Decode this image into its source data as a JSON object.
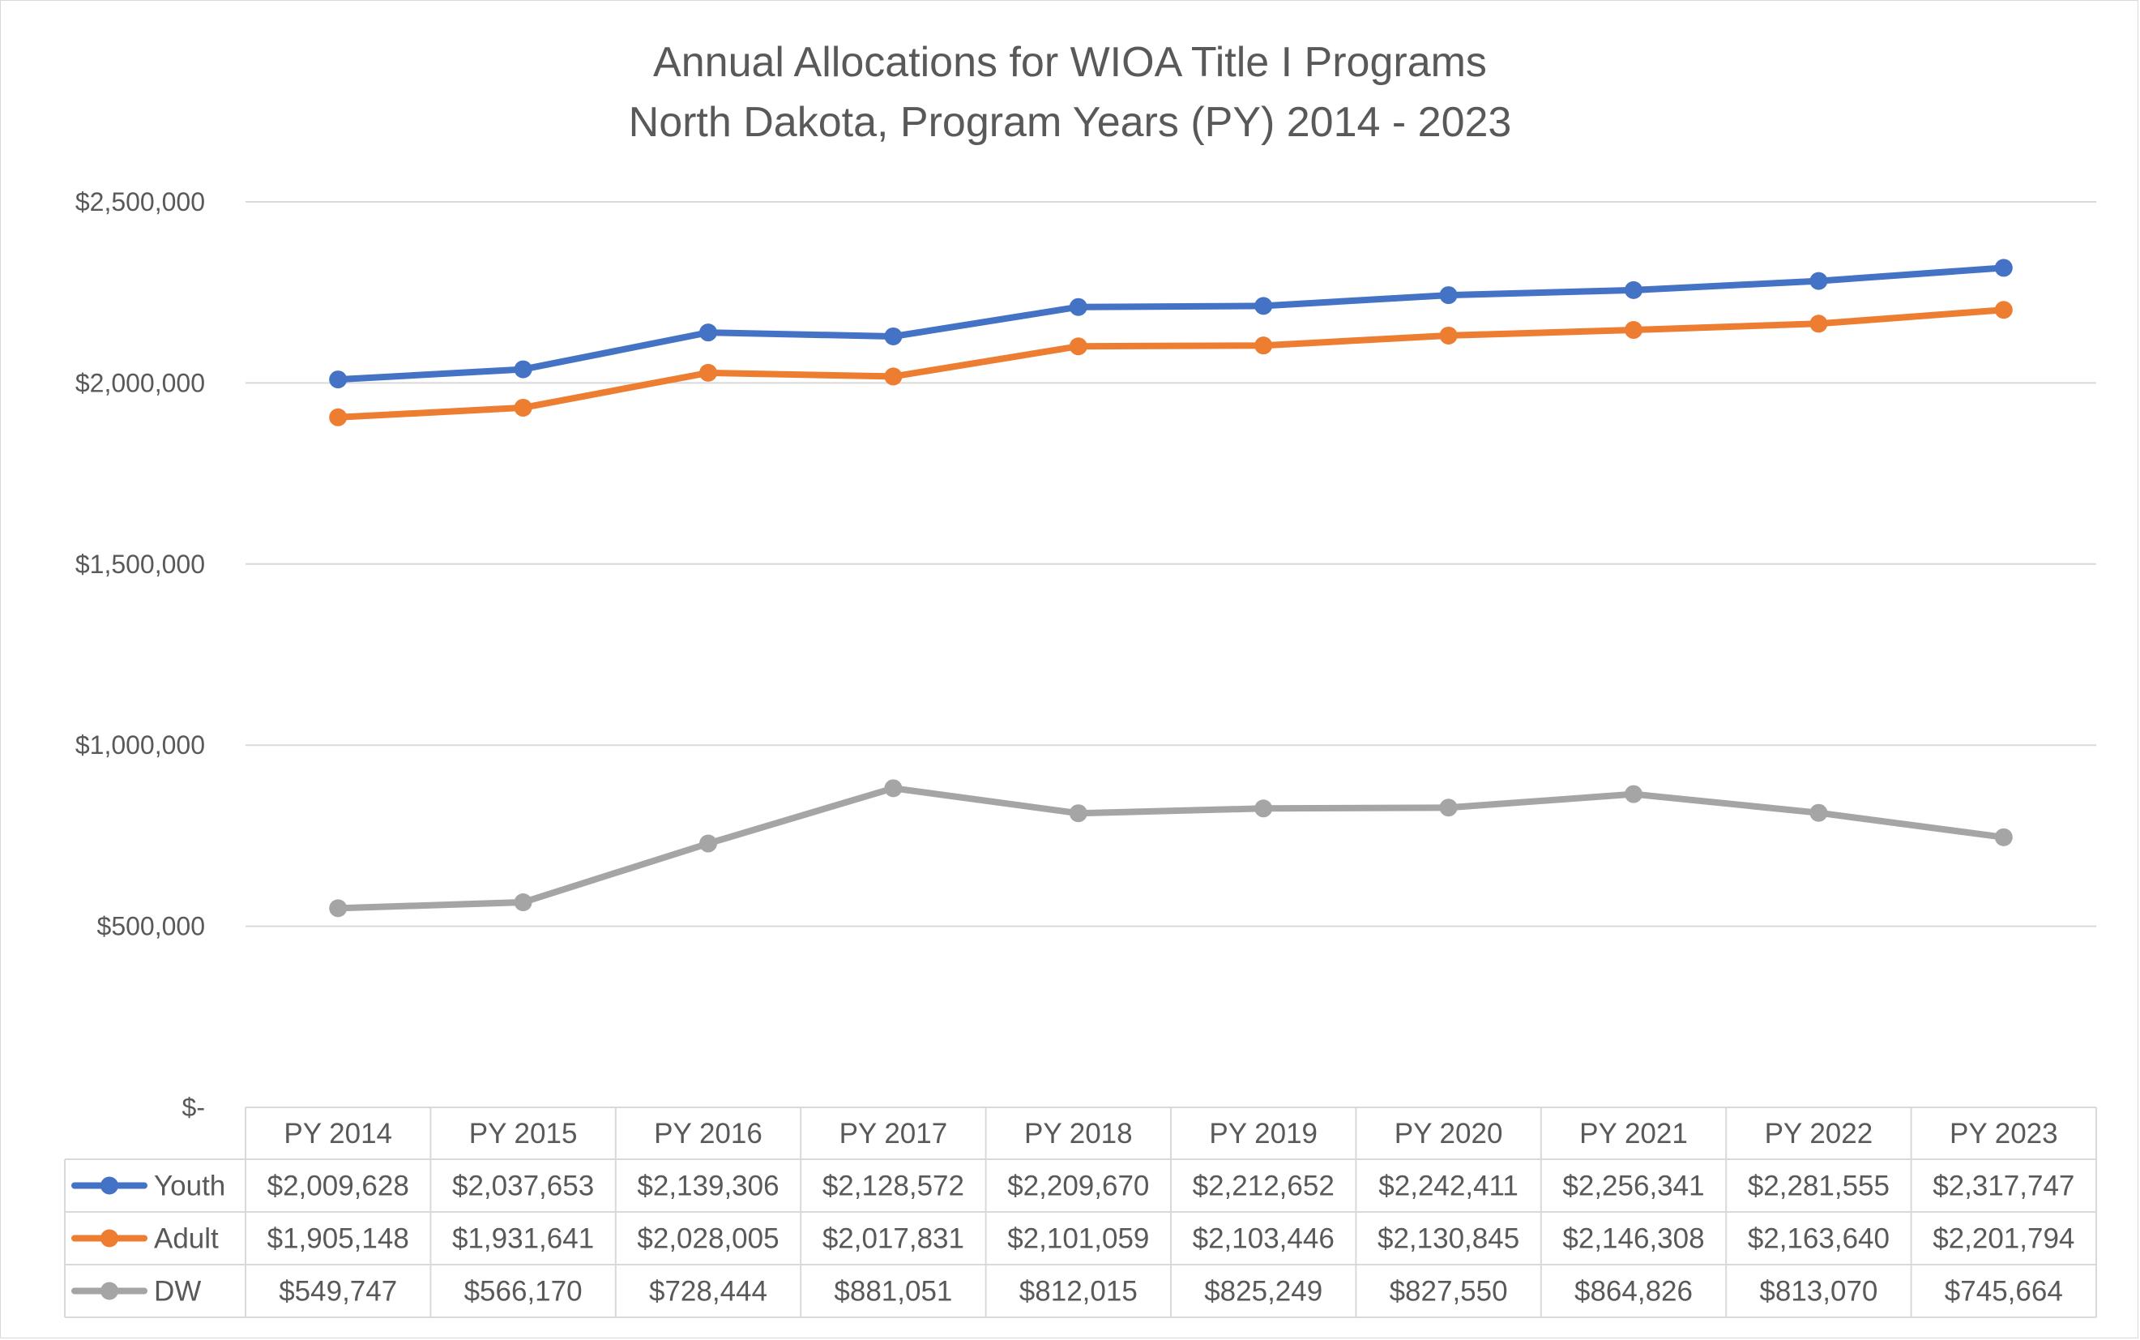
{
  "chart_data": {
    "type": "line",
    "title": "Annual Allocations for WIOA Title I Programs",
    "subtitle": "North Dakota, Program Years (PY) 2014 - 2023",
    "categories": [
      "PY 2014",
      "PY 2015",
      "PY 2016",
      "PY 2017",
      "PY 2018",
      "PY 2019",
      "PY 2020",
      "PY 2021",
      "PY 2022",
      "PY 2023"
    ],
    "ylim": [
      0,
      2500000
    ],
    "y_ticks": [
      0,
      500000,
      1000000,
      1500000,
      2000000,
      2500000
    ],
    "y_tick_labels": [
      "$-",
      "$500,000",
      "$1,000,000",
      "$1,500,000",
      "$2,000,000",
      "$2,500,000"
    ],
    "grid": true,
    "legend": "data-table",
    "series": [
      {
        "name": "Youth",
        "color": "#4472c4",
        "values": [
          2009628,
          2037653,
          2139306,
          2128572,
          2209670,
          2212652,
          2242411,
          2256341,
          2281555,
          2317747
        ],
        "labels": [
          "$2,009,628",
          "$2,037,653",
          "$2,139,306",
          "$2,128,572",
          "$2,209,670",
          "$2,212,652",
          "$2,242,411",
          "$2,256,341",
          "$2,281,555",
          "$2,317,747"
        ]
      },
      {
        "name": "Adult",
        "color": "#ed7d31",
        "values": [
          1905148,
          1931641,
          2028005,
          2017831,
          2101059,
          2103446,
          2130845,
          2146308,
          2163640,
          2201794
        ],
        "labels": [
          "$1,905,148",
          "$1,931,641",
          "$2,028,005",
          "$2,017,831",
          "$2,101,059",
          "$2,103,446",
          "$2,130,845",
          "$2,146,308",
          "$2,163,640",
          "$2,201,794"
        ]
      },
      {
        "name": "DW",
        "color": "#a5a5a5",
        "values": [
          549747,
          566170,
          728444,
          881051,
          812015,
          825249,
          827550,
          864826,
          813070,
          745664
        ],
        "labels": [
          "$549,747",
          "$566,170",
          "$728,444",
          "$881,051",
          "$812,015",
          "$825,249",
          "$827,550",
          "$864,826",
          "$813,070",
          "$745,664"
        ]
      }
    ]
  }
}
